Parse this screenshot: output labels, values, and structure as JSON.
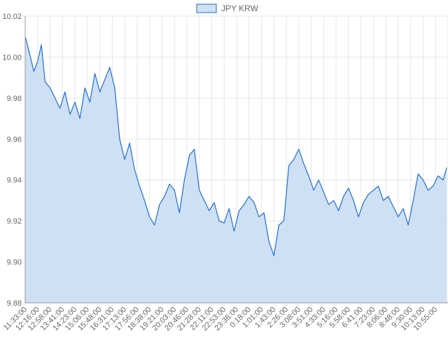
{
  "chart_data": {
    "type": "area",
    "legend": {
      "position": "top",
      "label": "JPY KRW"
    },
    "colors": {
      "line": "#1f6fcf",
      "fill": "#cfe0f4",
      "grid": "#e6e6e6",
      "axis": "#999999",
      "tick_text": "#666666"
    },
    "grid": true,
    "ylim": [
      9.88,
      10.02
    ],
    "y_ticks": [
      9.88,
      9.9,
      9.92,
      9.94,
      9.96,
      9.98,
      10.0,
      10.02
    ],
    "y_tick_labels": [
      "9.88",
      "9.90",
      "9.92",
      "9.94",
      "9.96",
      "9.98",
      "10.00",
      "10.02"
    ],
    "x_tick_labels": [
      "11:33:00",
      "12:16:00",
      "12:58:00",
      "13:41:00",
      "14:23:00",
      "15:06:00",
      "15:48:00",
      "16:31:00",
      "17:13:00",
      "17:56:00",
      "18:38:00",
      "19:21:00",
      "20:03:00",
      "20:46:00",
      "21:28:00",
      "22:11:00",
      "22:53:00",
      "23:36:00",
      "0:18:00",
      "1:01:00",
      "1:43:00",
      "2:26:00",
      "3:08:00",
      "3:51:00",
      "4:33:00",
      "5:16:00",
      "5:58:00",
      "6:41:00",
      "7:23:00",
      "8:06:00",
      "8:48:00",
      "9:30:00",
      "10:13:00",
      "10:55:00"
    ],
    "series": [
      {
        "name": "JPY KRW",
        "x_index": [
          0,
          0.3,
          0.7,
          1.0,
          1.3,
          1.6,
          2.0,
          2.4,
          2.8,
          3.2,
          3.6,
          4.0,
          4.4,
          4.8,
          5.2,
          5.6,
          6.0,
          6.4,
          6.8,
          7.2,
          7.6,
          8.0,
          8.4,
          8.8,
          9.2,
          9.6,
          10.0,
          10.4,
          10.8,
          11.2,
          11.6,
          12.0,
          12.4,
          12.8,
          13.2,
          13.6,
          14.0,
          14.4,
          14.8,
          15.2,
          15.6,
          16.0,
          16.4,
          16.8,
          17.2,
          17.6,
          18.0,
          18.4,
          18.8,
          19.2,
          19.6,
          20.0,
          20.4,
          20.8,
          21.2,
          21.6,
          22.0,
          22.4,
          22.8,
          23.2,
          23.6,
          24.0,
          24.4,
          24.8,
          25.2,
          25.6,
          26.0,
          26.4,
          26.8,
          27.2,
          27.6,
          28.0,
          28.4,
          28.8,
          29.2,
          29.6,
          30.0,
          30.4,
          30.8,
          31.2,
          31.6,
          32.0,
          32.4,
          32.8,
          33.2,
          33.6,
          33.9
        ],
        "values": [
          10.01,
          10.003,
          9.993,
          9.998,
          10.006,
          9.988,
          9.985,
          9.98,
          9.975,
          9.983,
          9.972,
          9.978,
          9.97,
          9.985,
          9.978,
          9.992,
          9.983,
          9.989,
          9.995,
          9.985,
          9.96,
          9.95,
          9.958,
          9.945,
          9.937,
          9.93,
          9.922,
          9.918,
          9.928,
          9.932,
          9.938,
          9.935,
          9.924,
          9.94,
          9.952,
          9.955,
          9.935,
          9.93,
          9.925,
          9.929,
          9.92,
          9.919,
          9.926,
          9.915,
          9.925,
          9.928,
          9.932,
          9.929,
          9.922,
          9.924,
          9.91,
          9.903,
          9.918,
          9.92,
          9.947,
          9.95,
          9.955,
          9.948,
          9.942,
          9.935,
          9.94,
          9.934,
          9.928,
          9.93,
          9.925,
          9.932,
          9.936,
          9.93,
          9.922,
          9.929,
          9.933,
          9.935,
          9.937,
          9.93,
          9.932,
          9.927,
          9.922,
          9.926,
          9.918,
          9.93,
          9.943,
          9.94,
          9.935,
          9.937,
          9.942,
          9.94,
          9.946
        ]
      }
    ]
  }
}
